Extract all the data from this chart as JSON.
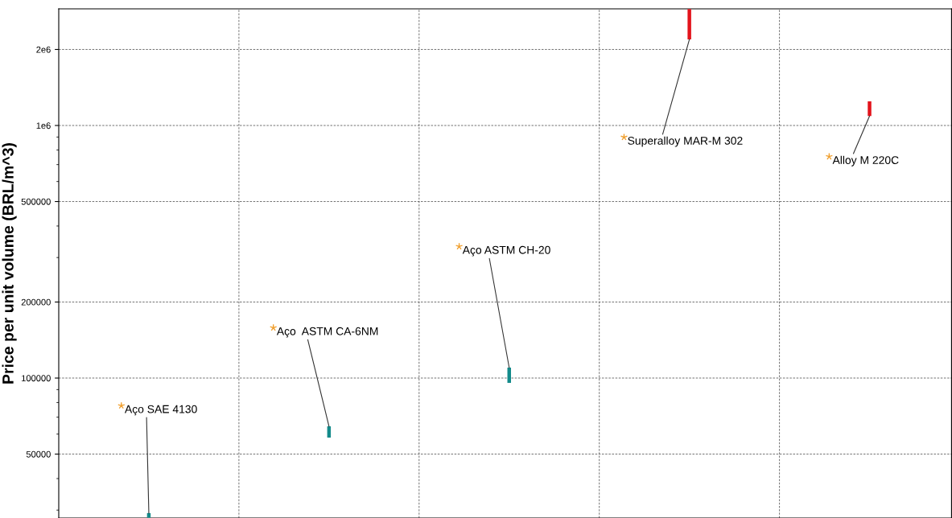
{
  "chart_data": {
    "type": "bar",
    "ylabel": "Price per unit volume (BRL/m^3)",
    "categories": [
      null,
      null,
      null,
      null,
      null
    ],
    "base": [
      28000,
      58100,
      95700,
      2190000,
      1090000
    ],
    "values": [
      1200,
      6300,
      14300,
      700000,
      156000
    ],
    "colors": [
      "#138a8a",
      "#138a8a",
      "#138a8a",
      "#e3131b",
      "#e3131b"
    ],
    "log": "y",
    "ylim": [
      27920,
      2896000
    ],
    "yticks": [
      50000,
      100000,
      200000,
      500000,
      {
        "value": 1000000,
        "label": "1e6"
      },
      {
        "value": 2000000,
        "label": "2e6"
      }
    ],
    "tick_labels": "y",
    "grid": true,
    "annotations": [
      "Aço SAE 4130",
      "Aço  ASTM CA-6NM",
      "Aço ASTM CH-20",
      "Superalloy MAR-M 302",
      "Alloy M 220C"
    ]
  }
}
